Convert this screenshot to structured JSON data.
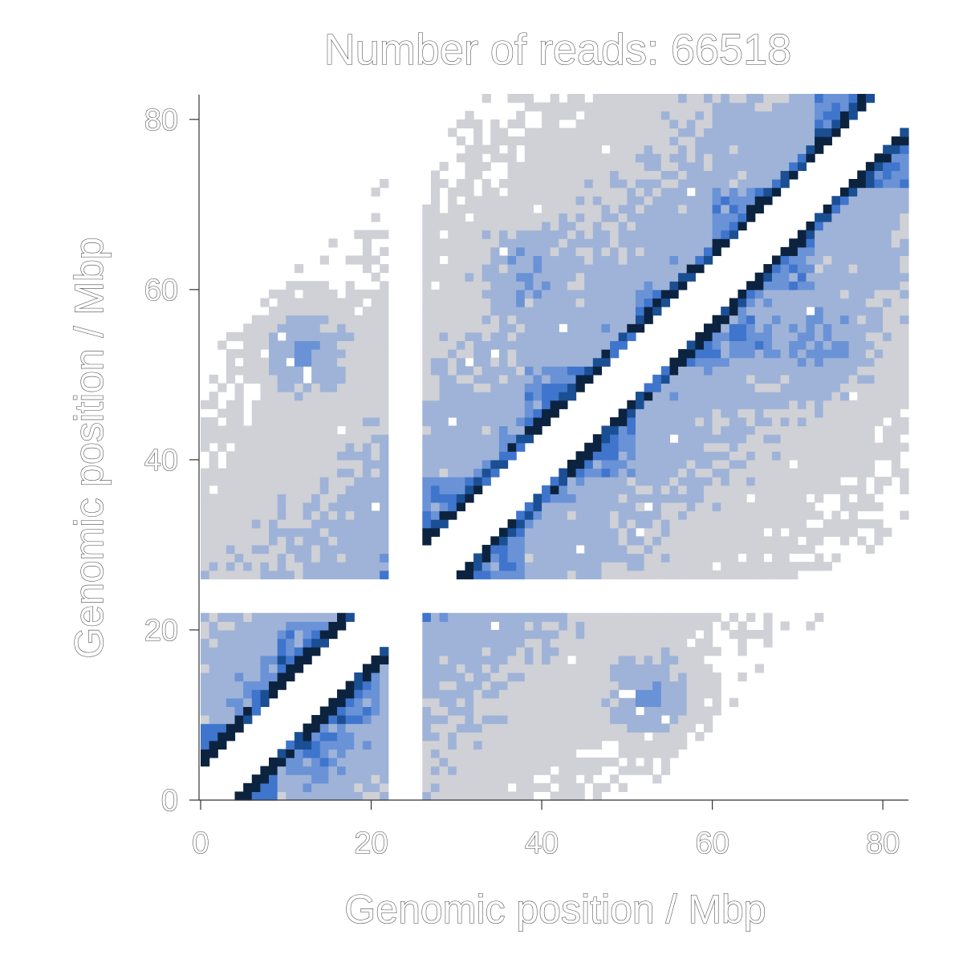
{
  "chart_data": {
    "type": "heatmap",
    "title": "Number of reads: 66518",
    "xlabel": "Genomic position / Mbp",
    "ylabel": "Genomic position / Mbp",
    "xlim": [
      0,
      83
    ],
    "ylim": [
      0,
      83
    ],
    "bin_size_mbp": 1,
    "x_ticks": [
      0,
      20,
      40,
      60,
      80
    ],
    "y_ticks": [
      0,
      20,
      40,
      60,
      80
    ],
    "grid": false,
    "legend": "none",
    "color_levels": [
      "#ffffff",
      "#cfd1d6",
      "#9fb3d8",
      "#6a92d6",
      "#3f75cc",
      "#1b4f93",
      "#0c2340"
    ],
    "level_meaning": "0 = no contacts (white) … 6 = highest contact count (darkest)",
    "unmapped_ranges_mbp": [
      [
        21.5,
        26.5
      ]
    ],
    "symmetric": true
  }
}
